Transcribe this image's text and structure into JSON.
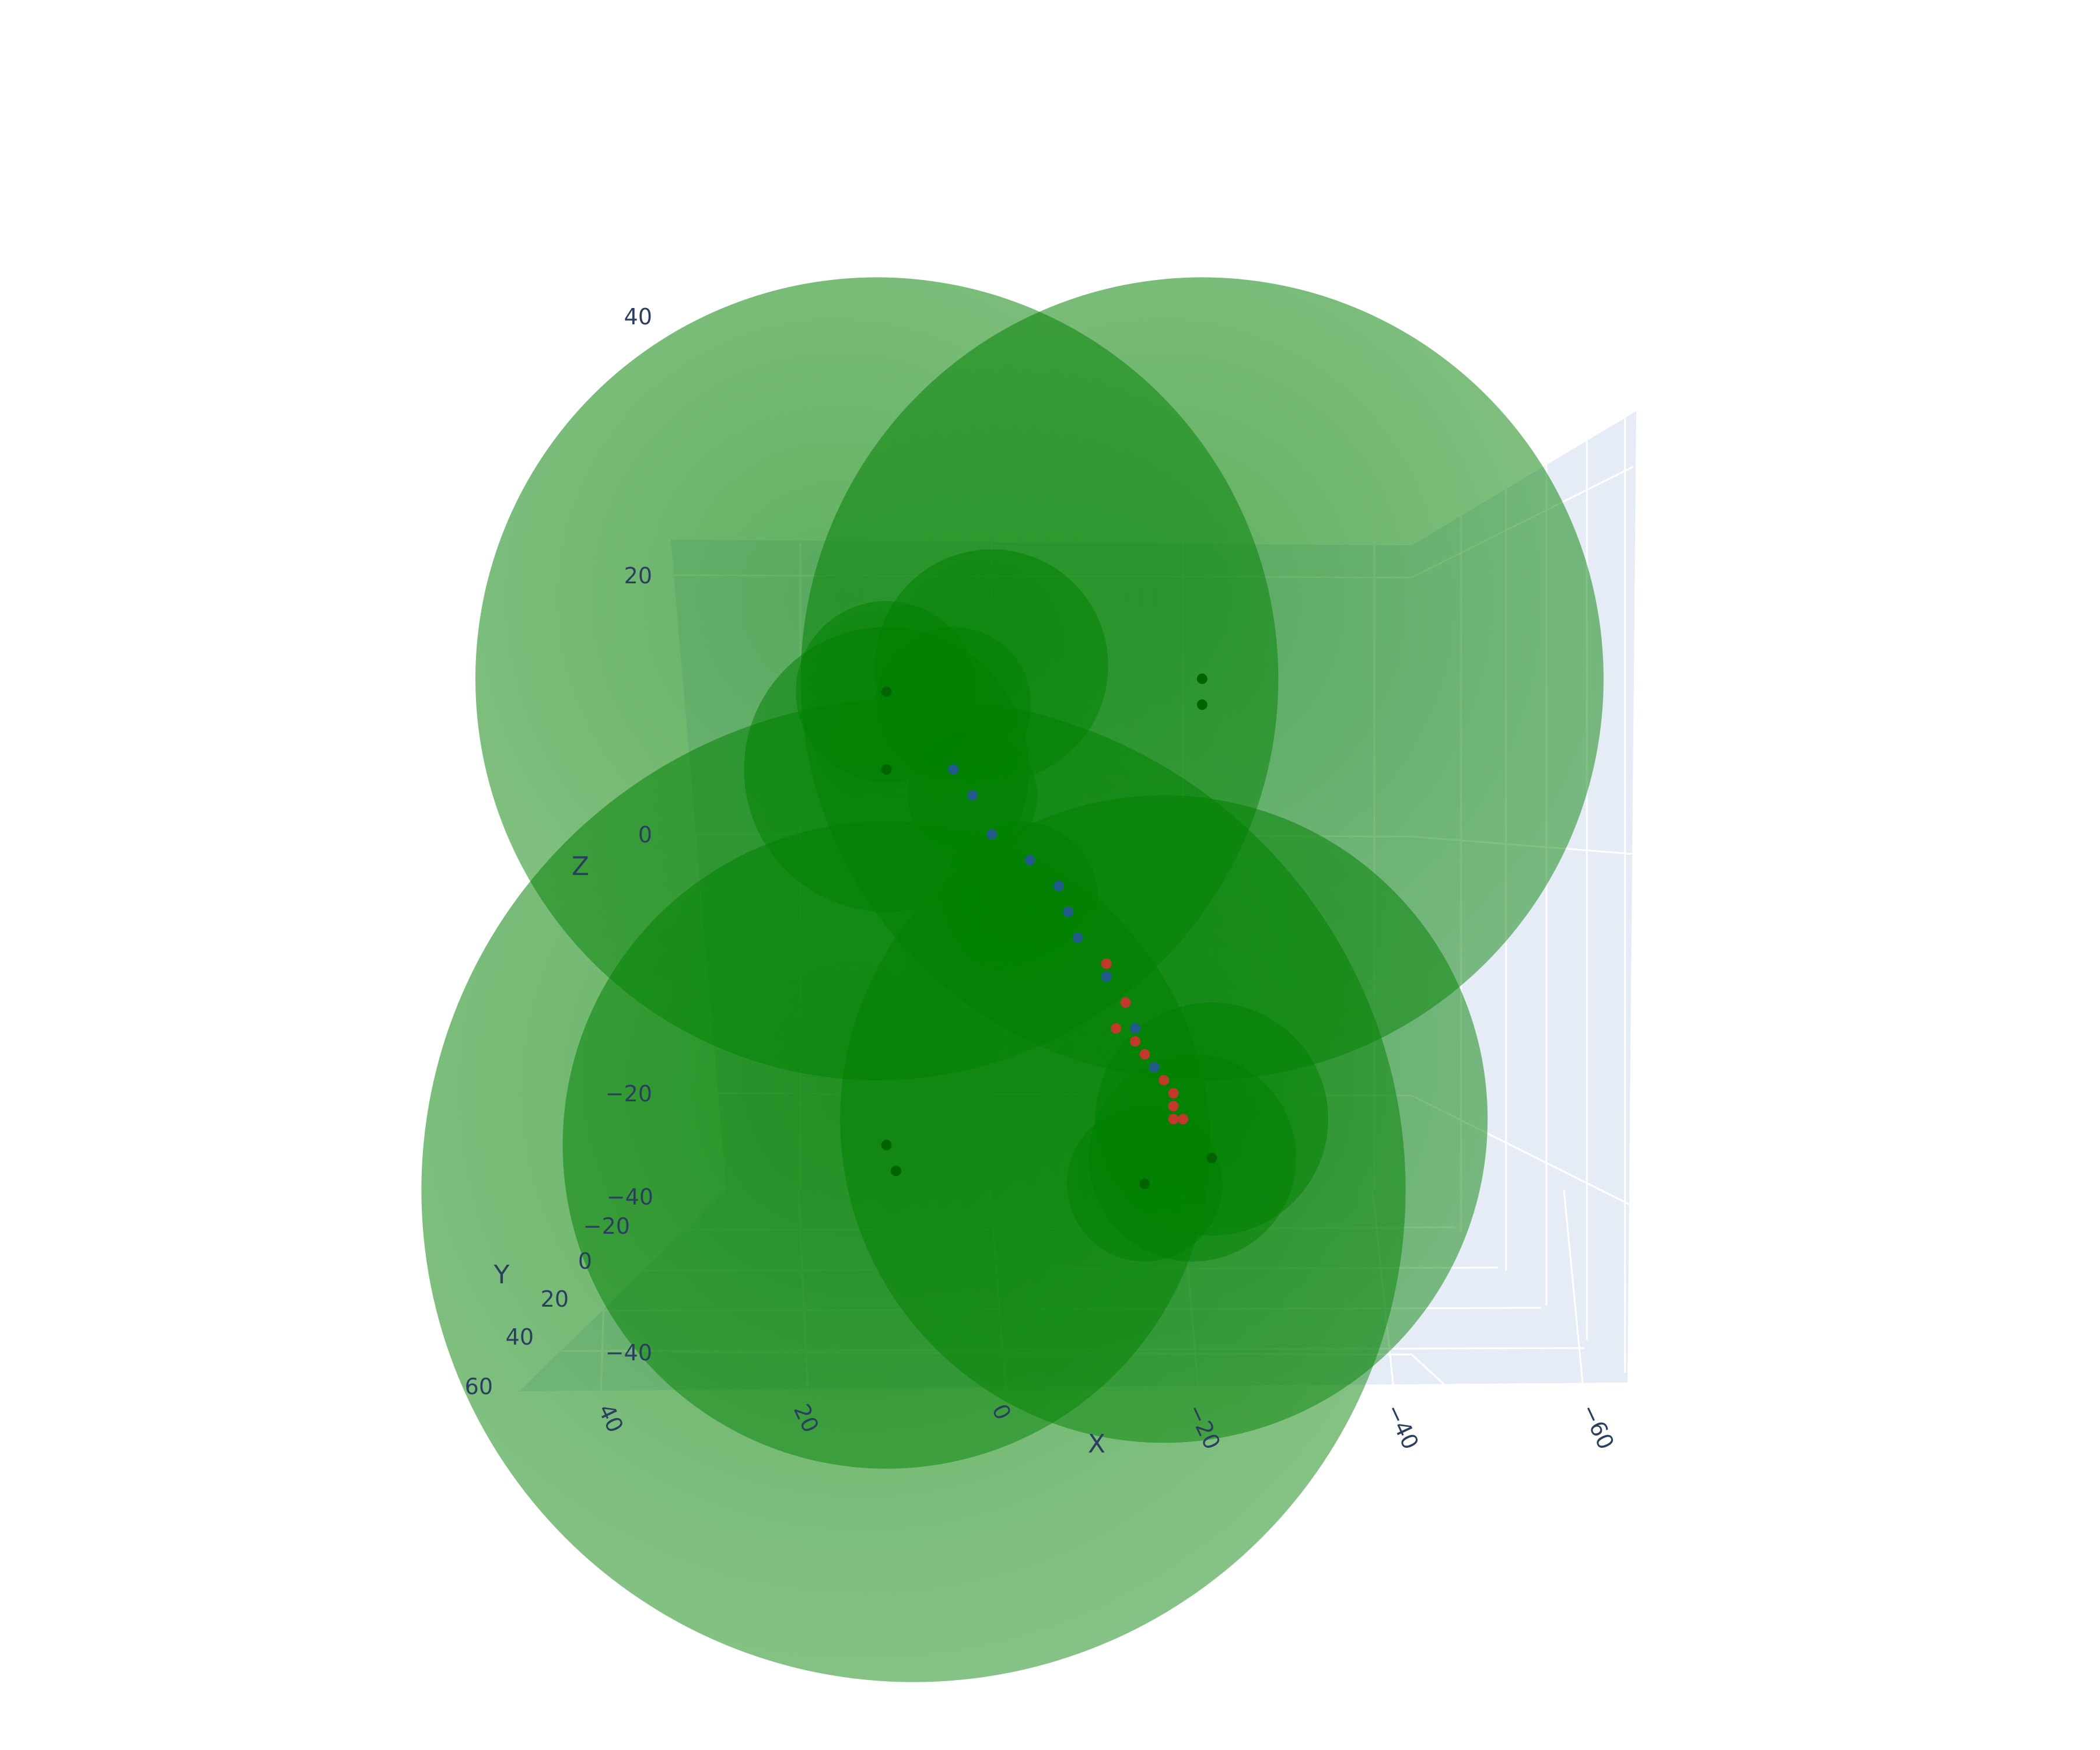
{
  "chart_data": {
    "type": "scatter3d",
    "xlabel": "X",
    "ylabel": "Y",
    "zlabel": "Z",
    "xlim": [
      -65,
      50
    ],
    "ylim": [
      -40,
      65
    ],
    "zlim": [
      -45,
      45
    ],
    "x_ticks": [
      "40",
      "20",
      "0",
      "−20",
      "−40",
      "−60"
    ],
    "y_ticks": [
      "−40",
      "−20",
      "0",
      "20",
      "40",
      "60"
    ],
    "z_ticks": [
      "40",
      "20",
      "0",
      "−20",
      "−40"
    ],
    "grid": true,
    "colors": {
      "scene_bg": "#e5ecf6",
      "grid": "#ffffff",
      "sphere": "#008000",
      "blue_points": "#1f5a8a",
      "red_points": "#c0392b",
      "green_points": "#006400",
      "text": "#2a3f5f"
    },
    "spheres": [
      {
        "x": 12,
        "y": 0,
        "z": 12,
        "r": 31
      },
      {
        "x": -22,
        "y": 0,
        "z": 12,
        "r": 31
      },
      {
        "x": 10,
        "y": 25,
        "z": -25,
        "r": 38
      },
      {
        "x": 11,
        "y": 0,
        "z": -24,
        "r": 25
      },
      {
        "x": -18,
        "y": 0,
        "z": -22,
        "r": 25
      },
      {
        "x": 11,
        "y": 0,
        "z": 5,
        "r": 11
      },
      {
        "x": 11,
        "y": 0,
        "z": 11,
        "r": 7
      },
      {
        "x": 0,
        "y": 0,
        "z": 13,
        "r": 9
      },
      {
        "x": 4,
        "y": 0,
        "z": 10,
        "r": 6
      },
      {
        "x": -23,
        "y": 0,
        "z": -22,
        "r": 9
      },
      {
        "x": -21,
        "y": 0,
        "z": -25,
        "r": 8
      },
      {
        "x": -16,
        "y": 0,
        "z": -27,
        "r": 6
      },
      {
        "x": 2,
        "y": 0,
        "z": 3,
        "r": 5
      },
      {
        "x": -3,
        "y": 0,
        "z": -5,
        "r": 6
      }
    ],
    "green_points": [
      {
        "x": 11,
        "y": 0,
        "z": 11
      },
      {
        "x": 11,
        "y": 0,
        "z": 5
      },
      {
        "x": -22,
        "y": 0,
        "z": 12
      },
      {
        "x": -22,
        "y": 0,
        "z": 10
      },
      {
        "x": 11,
        "y": 0,
        "z": -24
      },
      {
        "x": 10,
        "y": 0,
        "z": -26
      },
      {
        "x": -16,
        "y": 0,
        "z": -27
      },
      {
        "x": -23,
        "y": 0,
        "z": -25
      }
    ],
    "blue_points": [
      {
        "x": 4,
        "y": 0,
        "z": 5
      },
      {
        "x": 2,
        "y": 0,
        "z": 3
      },
      {
        "x": 0,
        "y": 0,
        "z": 0
      },
      {
        "x": -4,
        "y": 0,
        "z": -2
      },
      {
        "x": -7,
        "y": 0,
        "z": -4
      },
      {
        "x": -8,
        "y": 0,
        "z": -6
      },
      {
        "x": -9,
        "y": 0,
        "z": -8
      },
      {
        "x": -12,
        "y": 0,
        "z": -11
      },
      {
        "x": -15,
        "y": 0,
        "z": -15
      },
      {
        "x": -17,
        "y": 0,
        "z": -18
      }
    ],
    "red_points": [
      {
        "x": -12,
        "y": 0,
        "z": -10
      },
      {
        "x": -14,
        "y": 0,
        "z": -13
      },
      {
        "x": -13,
        "y": 0,
        "z": -15
      },
      {
        "x": -15,
        "y": 0,
        "z": -16
      },
      {
        "x": -16,
        "y": 0,
        "z": -17
      },
      {
        "x": -18,
        "y": 0,
        "z": -19
      },
      {
        "x": -19,
        "y": 0,
        "z": -20
      },
      {
        "x": -19,
        "y": 0,
        "z": -21
      },
      {
        "x": -20,
        "y": 0,
        "z": -22
      },
      {
        "x": -19,
        "y": 0,
        "z": -22
      }
    ]
  }
}
